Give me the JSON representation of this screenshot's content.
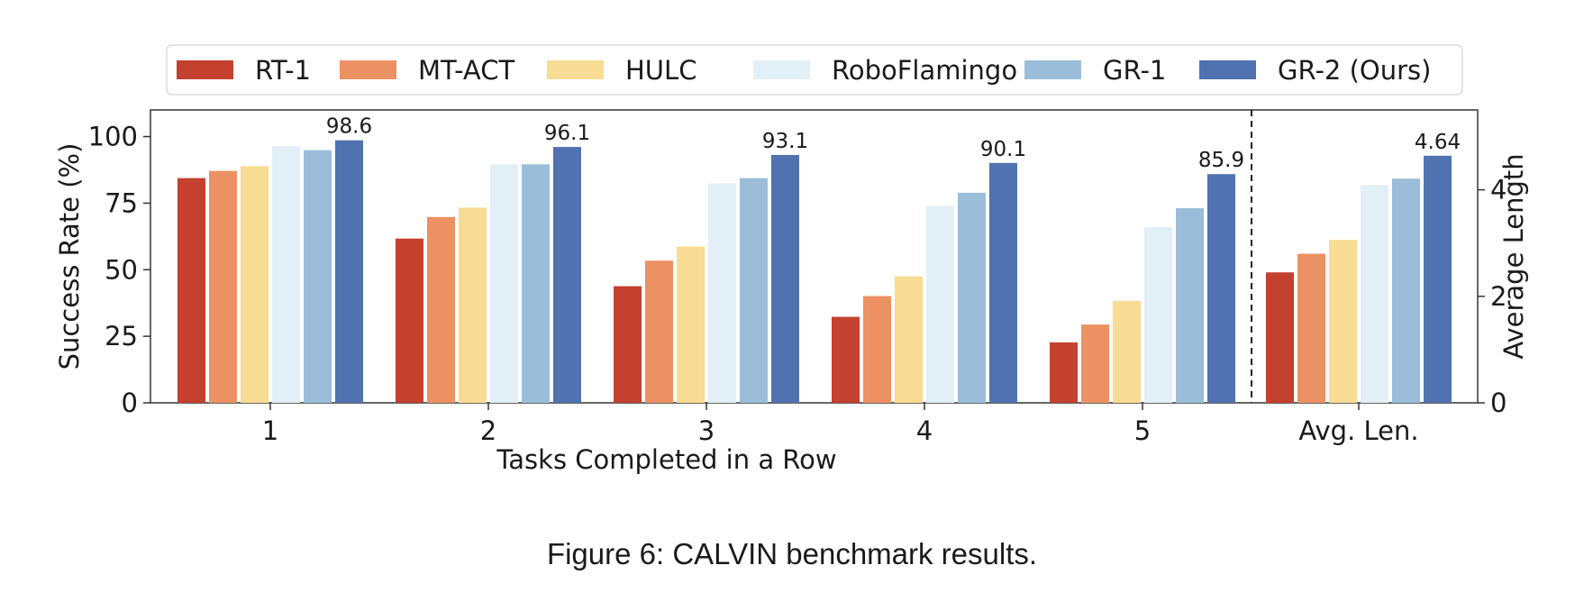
{
  "chart_data": {
    "type": "bar",
    "title": "",
    "xlabel": "Tasks Completed in a Row",
    "ylabel": "Success Rate (%)",
    "y2label": "Average Length",
    "ylim": [
      0,
      110
    ],
    "y2lim": [
      0,
      5.5
    ],
    "yticks": [
      "0",
      "25",
      "50",
      "75",
      "100"
    ],
    "y2ticks": [
      "0",
      "2",
      "4"
    ],
    "grid": false,
    "legend_position": "top",
    "categories": [
      "1",
      "2",
      "3",
      "4",
      "5"
    ],
    "secondary_category": "Avg. Len.",
    "series": [
      {
        "name": "RT-1",
        "color": "#c4402f",
        "values": [
          84.4,
          61.7,
          43.8,
          32.3,
          22.7
        ],
        "avg_len": 2.45
      },
      {
        "name": "MT-ACT",
        "color": "#ec9163",
        "values": [
          87.1,
          69.8,
          53.4,
          40.1,
          29.4
        ],
        "avg_len": 2.8
      },
      {
        "name": "HULC",
        "color": "#f8dc93",
        "values": [
          88.9,
          73.3,
          58.7,
          47.5,
          38.3
        ],
        "avg_len": 3.06
      },
      {
        "name": "RoboFlamingo",
        "color": "#e2eff6",
        "values": [
          96.4,
          89.6,
          82.4,
          74.0,
          66.0
        ],
        "avg_len": 4.09
      },
      {
        "name": "GR-1",
        "color": "#9bbdd9",
        "values": [
          94.9,
          89.6,
          84.4,
          78.9,
          73.1
        ],
        "avg_len": 4.21
      },
      {
        "name": "GR-2 (Ours)",
        "color": "#5172b0",
        "values": [
          98.6,
          96.1,
          93.1,
          90.1,
          85.9
        ],
        "avg_len": 4.64
      }
    ],
    "data_labels": [
      "98.6",
      "96.1",
      "93.1",
      "90.1",
      "85.9",
      "4.64"
    ]
  },
  "caption": "Figure 6: CALVIN benchmark results."
}
